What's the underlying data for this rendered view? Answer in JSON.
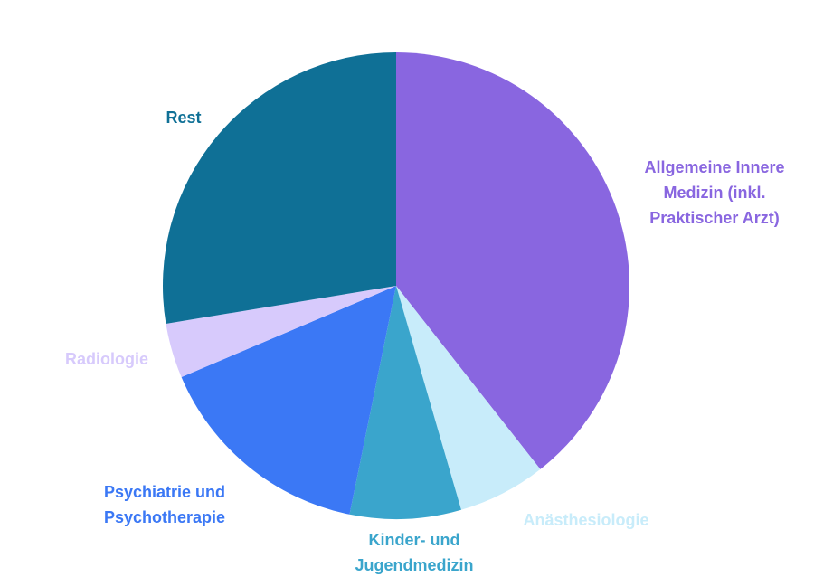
{
  "chart_data": {
    "type": "pie",
    "categories": [
      "Allgemeine Innere Medizin (inkl. Praktischer Arzt)",
      "Anästhesiologie",
      "Kinder- und Jugendmedizin",
      "Psychiatrie und Psychotherapie",
      "Radiologie",
      "Rest"
    ],
    "values": [
      39.4,
      6.1,
      7.7,
      15.4,
      3.8,
      27.6
    ],
    "colors": [
      "#8966e0",
      "#c8ecfa",
      "#3aa5cc",
      "#3b78f5",
      "#d7cafc",
      "#0f7096"
    ]
  }
}
